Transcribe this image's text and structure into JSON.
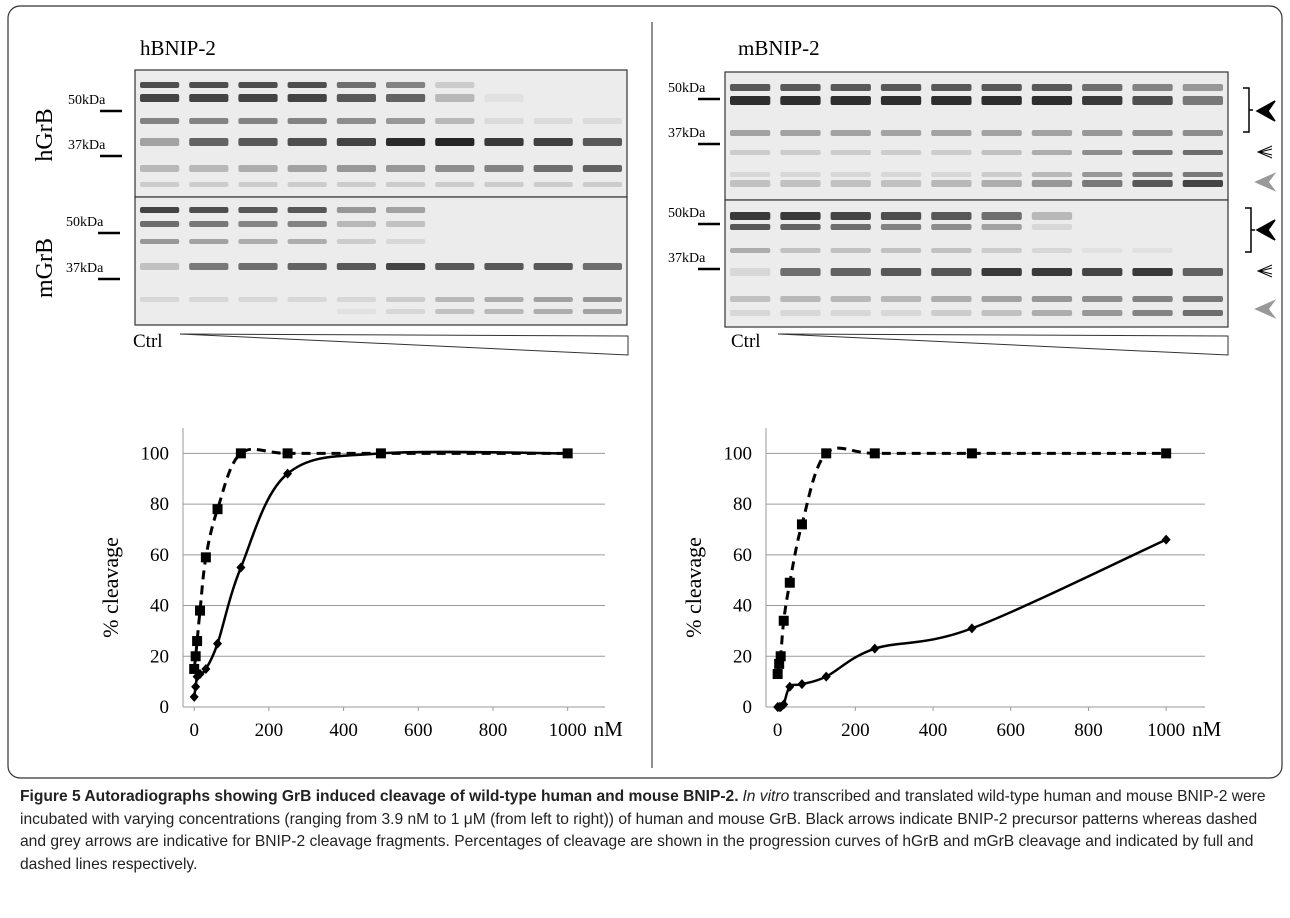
{
  "panels": [
    {
      "title": "hBNIP-2",
      "gel": {
        "rows": [
          "hGrB",
          "mGrB"
        ],
        "markers": [
          [
            "50kDa",
            "37kDa"
          ],
          [
            "50kDa",
            "37kDa"
          ]
        ],
        "control": "Ctrl"
      }
    },
    {
      "title": "mBNIP-2",
      "gel": {
        "markers": [
          [
            "50kDa",
            "37kDa"
          ],
          [
            "50kDa",
            "37kDa"
          ]
        ],
        "control": "Ctrl"
      }
    }
  ],
  "chart_data": [
    {
      "type": "line",
      "ylabel": "% cleavage",
      "xlabel": "nM",
      "x": [
        0,
        3.9,
        7.8,
        15.6,
        31.25,
        62.5,
        125,
        250,
        500,
        1000
      ],
      "series": [
        {
          "color": "#000000",
          "dash": true,
          "marker": "square",
          "values": [
            15,
            20,
            26,
            38,
            59,
            78,
            100,
            100,
            100,
            100
          ]
        },
        {
          "color": "#000000",
          "dash": false,
          "marker": "diamond",
          "values": [
            4,
            8,
            12,
            13,
            15,
            25,
            55,
            92,
            100,
            100
          ]
        }
      ],
      "xlim": [
        -30,
        1100
      ],
      "ylim": [
        0,
        110
      ],
      "xticks": [
        0,
        200,
        400,
        600,
        800,
        1000
      ],
      "yticks": [
        0,
        20,
        40,
        60,
        80,
        100
      ],
      "grid": true
    },
    {
      "type": "line",
      "ylabel": "% cleavage",
      "xlabel": "nM",
      "x": [
        0,
        3.9,
        7.8,
        15.6,
        31.25,
        62.5,
        125,
        250,
        500,
        1000
      ],
      "series": [
        {
          "color": "#000000",
          "dash": true,
          "marker": "square",
          "values": [
            13,
            17,
            20,
            34,
            49,
            72,
            100,
            100,
            100,
            100
          ]
        },
        {
          "color": "#000000",
          "dash": false,
          "marker": "diamond",
          "values": [
            0,
            0,
            0,
            1,
            8,
            9,
            12,
            23,
            31,
            66
          ]
        }
      ],
      "xlim": [
        -30,
        1100
      ],
      "ylim": [
        0,
        110
      ],
      "xticks": [
        0,
        200,
        400,
        600,
        800,
        1000
      ],
      "yticks": [
        0,
        20,
        40,
        60,
        80,
        100
      ],
      "grid": true
    }
  ],
  "caption": {
    "title": "Figure 5 Autoradiographs showing GrB induced cleavage of wild-type human and mouse BNIP-2.",
    "italic": "In vitro",
    "text": "transcribed and translated wild-type human and mouse BNIP-2 were incubated with varying concentrations (ranging from 3.9 nM to 1 μM (from left to right)) of human and mouse GrB. Black arrows indicate BNIP-2 precursor patterns whereas dashed and grey arrows are indicative for BNIP-2 cleavage fragments. Percentages of cleavage are shown in the progression curves of hGrB and mGrB cleavage and indicated by full and dashed lines respectively."
  }
}
